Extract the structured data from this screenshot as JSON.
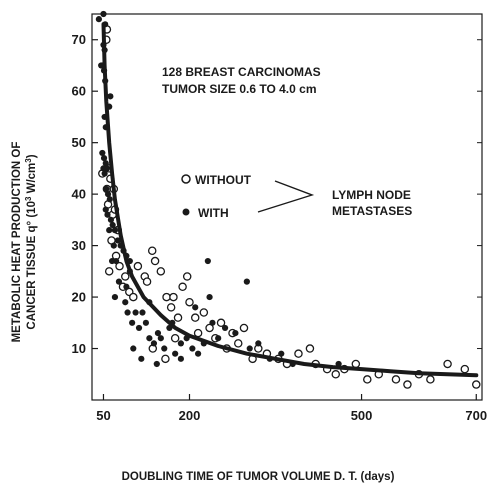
{
  "chart_data": {
    "type": "scatter",
    "title": "",
    "annotations": {
      "line1": "128 BREAST CARCINOMAS",
      "line2": "TUMOR SIZE 0.6 TO 4.0 cm",
      "legend_without": "WITHOUT",
      "legend_with": "WITH",
      "group_label_1": "LYMPH NODE",
      "group_label_2": "METASTASES"
    },
    "xlabel": "DOUBLING TIME OF TUMOR VOLUME D. T.  (days)",
    "ylabel_line1": "METABOLIC HEAT PRODUCTION OF",
    "ylabel_line2": "CANCER TISSUE q° (10",
    "ylabel_sup": "3",
    "ylabel_line2_tail": " W/cm",
    "ylabel_sup2": "3",
    "ylabel_close": ")",
    "xlim": [
      30,
      710
    ],
    "ylim": [
      0,
      75
    ],
    "x_ticks": [
      50,
      200,
      500,
      700
    ],
    "x_tick_labels": [
      "50",
      "200",
      "500",
      "700"
    ],
    "y_ticks": [
      10,
      20,
      30,
      40,
      50,
      60,
      70
    ],
    "y_tick_labels": [
      "10",
      "20",
      "30",
      "40",
      "50",
      "60",
      "70"
    ],
    "colors": {
      "ink": "#1a1a1a"
    },
    "series": [
      {
        "name": "WITHOUT",
        "marker": "open-circle",
        "points": [
          [
            56,
            72
          ],
          [
            55,
            70
          ],
          [
            60,
            45
          ],
          [
            48,
            44
          ],
          [
            56,
            41
          ],
          [
            62,
            43
          ],
          [
            68,
            41
          ],
          [
            58,
            38
          ],
          [
            66,
            36
          ],
          [
            70,
            37
          ],
          [
            75,
            33
          ],
          [
            64,
            31
          ],
          [
            72,
            28
          ],
          [
            78,
            26
          ],
          [
            60,
            25
          ],
          [
            84,
            22
          ],
          [
            88,
            24
          ],
          [
            95,
            21
          ],
          [
            102,
            20
          ],
          [
            110,
            26
          ],
          [
            122,
            24
          ],
          [
            126,
            23
          ],
          [
            135,
            29
          ],
          [
            140,
            27
          ],
          [
            150,
            25
          ],
          [
            160,
            20
          ],
          [
            168,
            18
          ],
          [
            172,
            20
          ],
          [
            180,
            16
          ],
          [
            188,
            22
          ],
          [
            196,
            24
          ],
          [
            200,
            19
          ],
          [
            210,
            16
          ],
          [
            215,
            13
          ],
          [
            225,
            17
          ],
          [
            235,
            14
          ],
          [
            245,
            12
          ],
          [
            255,
            15
          ],
          [
            265,
            10
          ],
          [
            275,
            13
          ],
          [
            285,
            11
          ],
          [
            295,
            14
          ],
          [
            310,
            8
          ],
          [
            320,
            10
          ],
          [
            335,
            9
          ],
          [
            355,
            8
          ],
          [
            370,
            7
          ],
          [
            390,
            9
          ],
          [
            410,
            10
          ],
          [
            420,
            7
          ],
          [
            440,
            6
          ],
          [
            455,
            5
          ],
          [
            470,
            6
          ],
          [
            490,
            7
          ],
          [
            510,
            4
          ],
          [
            530,
            5
          ],
          [
            560,
            4
          ],
          [
            580,
            3
          ],
          [
            600,
            5
          ],
          [
            620,
            4
          ],
          [
            650,
            7
          ],
          [
            680,
            6
          ],
          [
            700,
            3
          ],
          [
            158,
            8
          ],
          [
            136,
            10
          ],
          [
            175,
            12
          ]
        ]
      },
      {
        "name": "WITH",
        "marker": "filled-circle",
        "points": [
          [
            42,
            74
          ],
          [
            50,
            75
          ],
          [
            53,
            73
          ],
          [
            50,
            69
          ],
          [
            52,
            68
          ],
          [
            46,
            65
          ],
          [
            48,
            65
          ],
          [
            51,
            64
          ],
          [
            53,
            62
          ],
          [
            62,
            59
          ],
          [
            60,
            57
          ],
          [
            52,
            55
          ],
          [
            54,
            53
          ],
          [
            48,
            48
          ],
          [
            51,
            47
          ],
          [
            54,
            46
          ],
          [
            56,
            45
          ],
          [
            50,
            45
          ],
          [
            52,
            44
          ],
          [
            55,
            41
          ],
          [
            58,
            40
          ],
          [
            61,
            39
          ],
          [
            54,
            37
          ],
          [
            57,
            36
          ],
          [
            63,
            35
          ],
          [
            66,
            34
          ],
          [
            60,
            33
          ],
          [
            70,
            33
          ],
          [
            75,
            31
          ],
          [
            68,
            30
          ],
          [
            80,
            30
          ],
          [
            72,
            27
          ],
          [
            65,
            27
          ],
          [
            85,
            29
          ],
          [
            90,
            28
          ],
          [
            96,
            27
          ],
          [
            77,
            23
          ],
          [
            88,
            19
          ],
          [
            92,
            17
          ],
          [
            100,
            15
          ],
          [
            106,
            17
          ],
          [
            112,
            14
          ],
          [
            118,
            17
          ],
          [
            124,
            15
          ],
          [
            130,
            12
          ],
          [
            138,
            11
          ],
          [
            145,
            13
          ],
          [
            150,
            12
          ],
          [
            156,
            10
          ],
          [
            165,
            14
          ],
          [
            175,
            9
          ],
          [
            185,
            11
          ],
          [
            195,
            12
          ],
          [
            205,
            10
          ],
          [
            215,
            9
          ],
          [
            225,
            11
          ],
          [
            232,
            27
          ],
          [
            240,
            15
          ],
          [
            250,
            12
          ],
          [
            262,
            14
          ],
          [
            280,
            13
          ],
          [
            300,
            23
          ],
          [
            305,
            10
          ],
          [
            320,
            11
          ],
          [
            340,
            8
          ],
          [
            360,
            9
          ],
          [
            380,
            7
          ],
          [
            460,
            7
          ],
          [
            102,
            10
          ],
          [
            116,
            8
          ],
          [
            143,
            7
          ],
          [
            185,
            8
          ],
          [
            130,
            19
          ],
          [
            170,
            15
          ],
          [
            210,
            18
          ],
          [
            235,
            20
          ],
          [
            90,
            22
          ],
          [
            96,
            25
          ],
          [
            70,
            20
          ]
        ]
      }
    ],
    "fit_curve": {
      "description": "hyperbolic trend",
      "points": [
        [
          50,
          73
        ],
        [
          52,
          65
        ],
        [
          55,
          58
        ],
        [
          60,
          50
        ],
        [
          65,
          44
        ],
        [
          70,
          39
        ],
        [
          80,
          32
        ],
        [
          90,
          27
        ],
        [
          100,
          24
        ],
        [
          120,
          20
        ],
        [
          150,
          16.5
        ],
        [
          175,
          14
        ],
        [
          200,
          12.5
        ],
        [
          250,
          10.5
        ],
        [
          300,
          9
        ],
        [
          350,
          8
        ],
        [
          400,
          7
        ],
        [
          450,
          6.4
        ],
        [
          500,
          6
        ],
        [
          550,
          5.6
        ],
        [
          600,
          5.2
        ],
        [
          650,
          5
        ],
        [
          700,
          4.8
        ]
      ]
    }
  }
}
